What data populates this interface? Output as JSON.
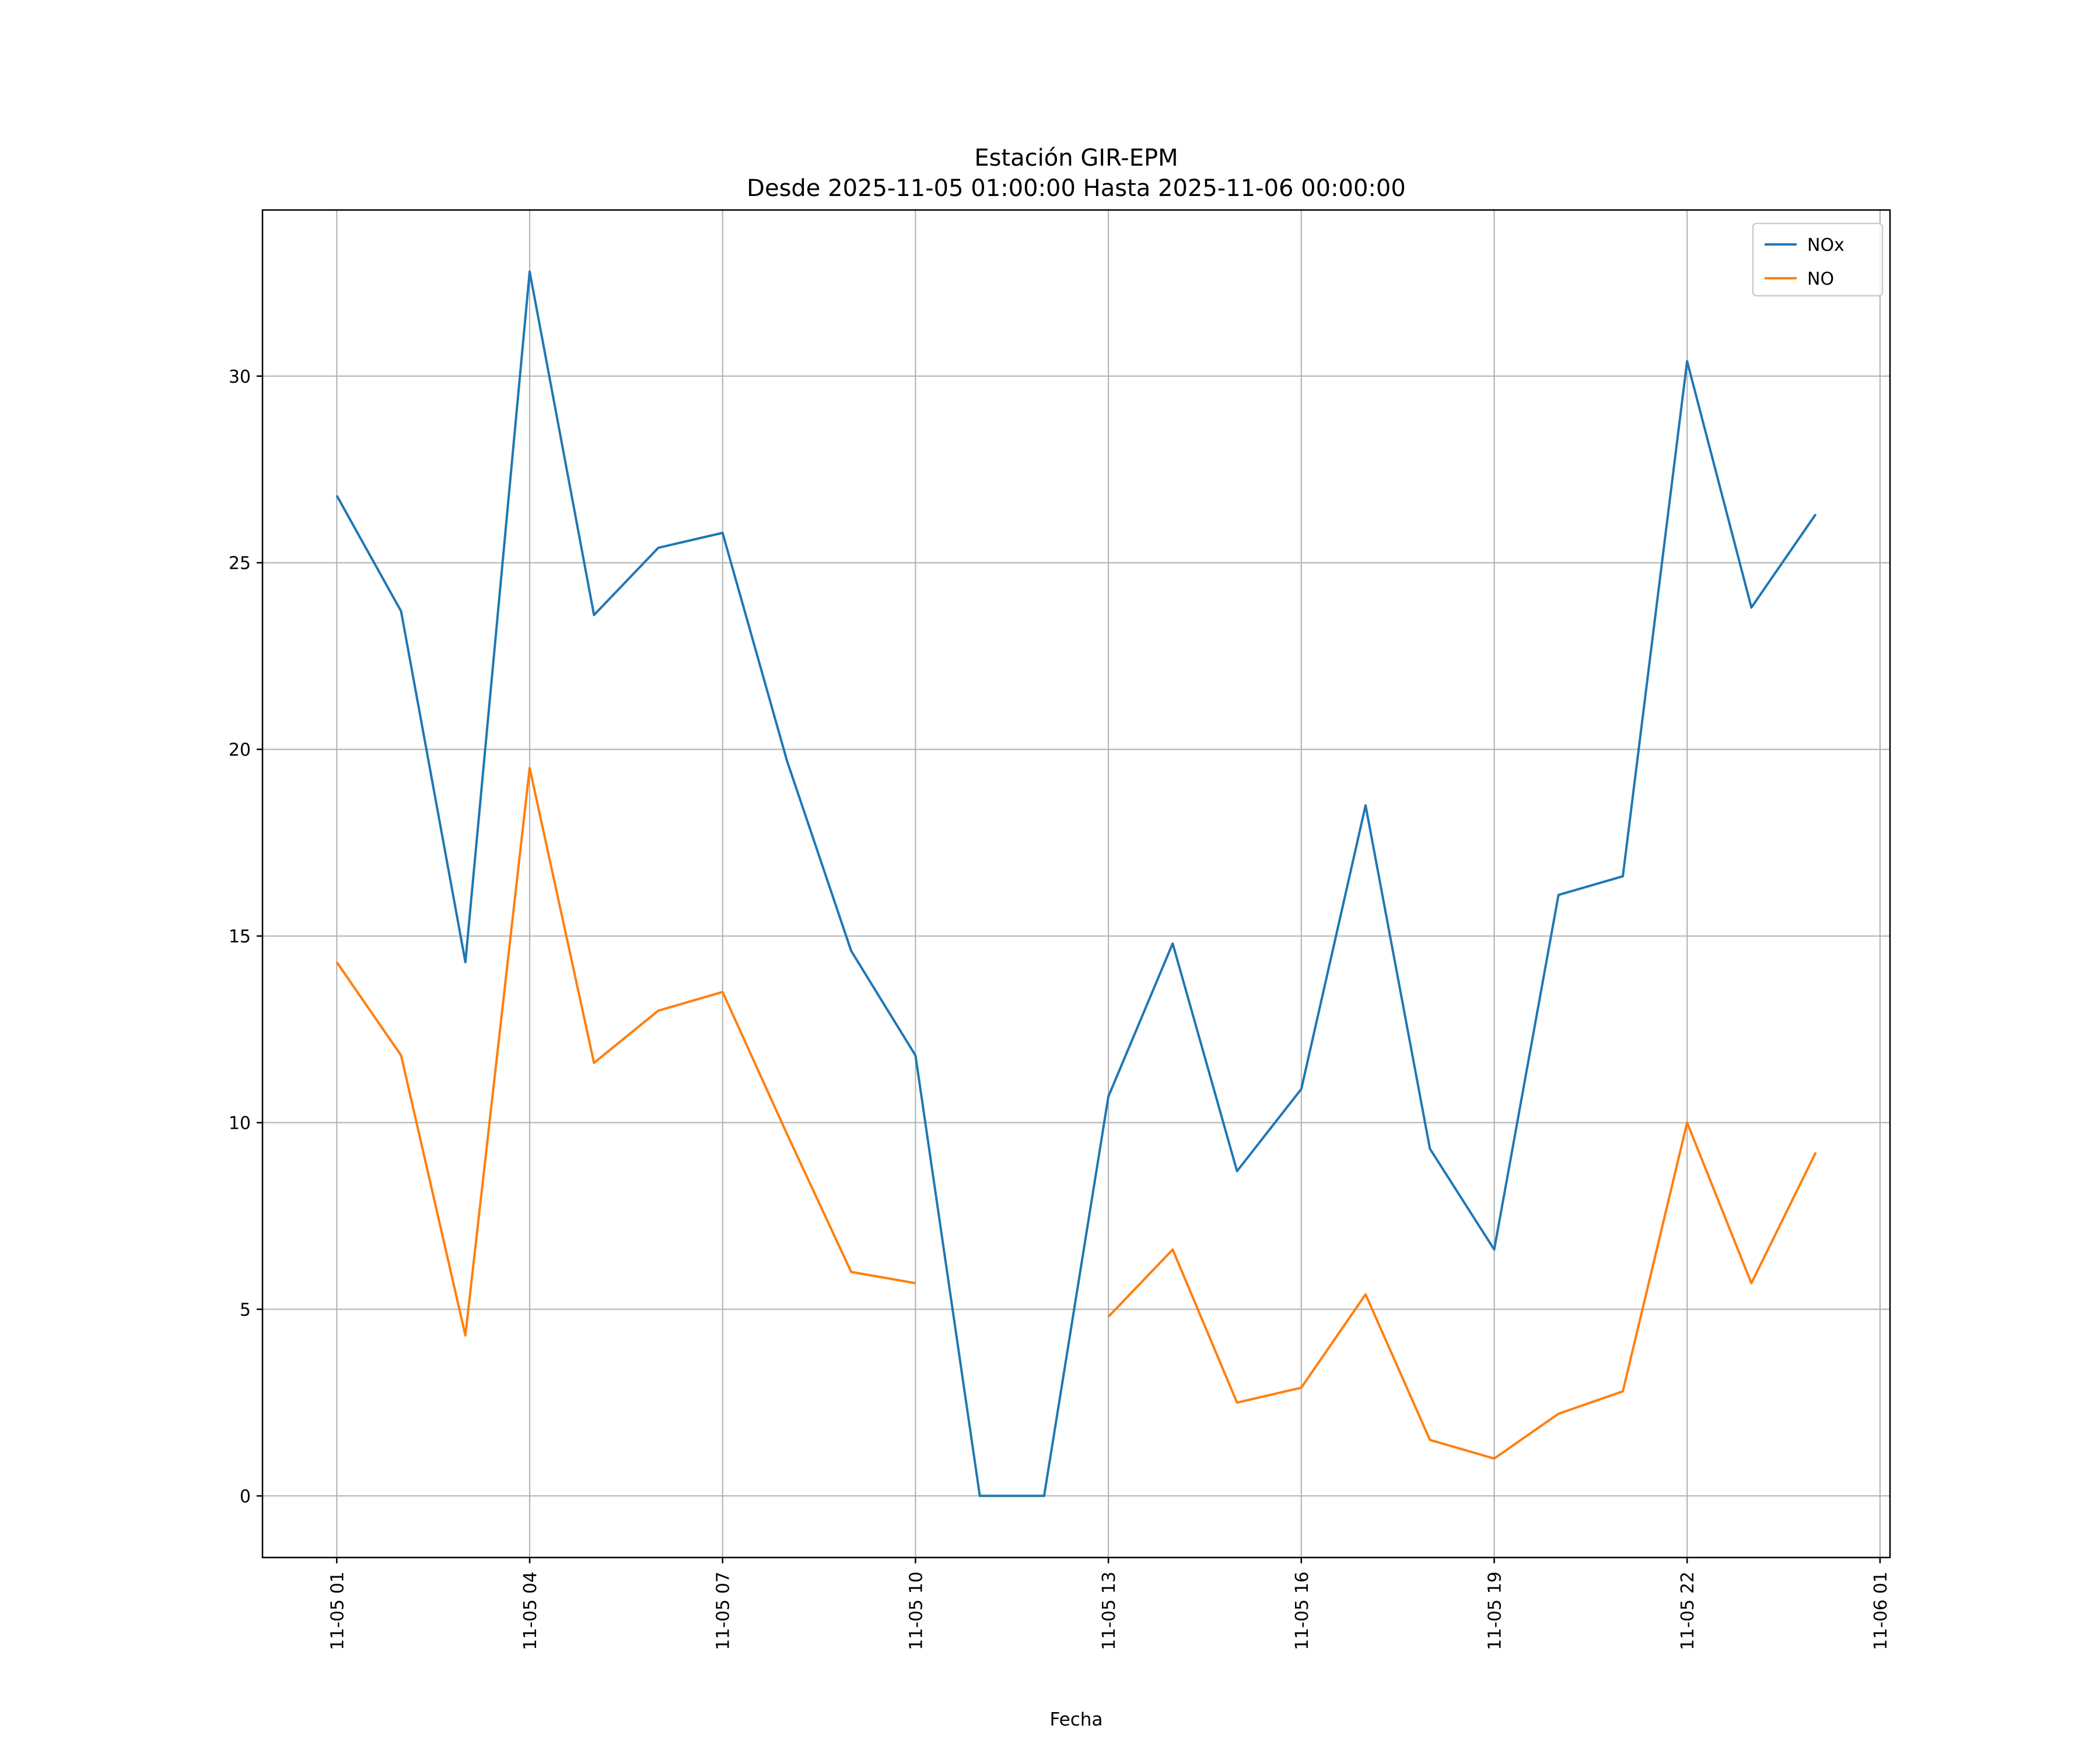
{
  "chart_data": {
    "type": "line",
    "title_line1": "Estación GIR-EPM",
    "title_line2": "Desde 2025-11-05 01:00:00 Hasta 2025-11-06 00:00:00",
    "xlabel": "Fecha",
    "ylabel": "",
    "grid": true,
    "legend_position": "upper right",
    "x_hours": [
      1,
      2,
      3,
      4,
      5,
      6,
      7,
      8,
      9,
      10,
      11,
      12,
      13,
      14,
      15,
      16,
      17,
      18,
      19,
      20,
      21,
      22,
      23,
      24
    ],
    "x_tick_positions": [
      1,
      4,
      7,
      10,
      13,
      16,
      19,
      22,
      25
    ],
    "x_tick_labels": [
      "11-05 01",
      "11-05 04",
      "11-05 07",
      "11-05 10",
      "11-05 13",
      "11-05 16",
      "11-05 19",
      "11-05 22",
      "11-06 01"
    ],
    "y_ticks": [
      0,
      5,
      10,
      15,
      20,
      25,
      30
    ],
    "xlim": [
      -0.155,
      25.155
    ],
    "ylim": [
      -1.65,
      34.45
    ],
    "series": [
      {
        "name": "NOx",
        "color": "#1f77b4",
        "values": [
          26.8,
          23.7,
          14.3,
          32.8,
          23.6,
          25.4,
          25.8,
          19.7,
          14.6,
          11.8,
          0.0,
          0.0,
          10.7,
          14.8,
          8.7,
          10.9,
          18.5,
          9.3,
          6.6,
          16.1,
          16.6,
          30.4,
          23.8,
          26.3
        ]
      },
      {
        "name": "NO",
        "color": "#ff7f0e",
        "values": [
          14.3,
          11.8,
          4.3,
          19.5,
          11.6,
          13.0,
          13.5,
          9.7,
          6.0,
          5.7,
          null,
          null,
          4.8,
          6.6,
          2.5,
          2.9,
          5.4,
          1.5,
          1.0,
          2.2,
          2.8,
          10.0,
          5.7,
          9.2
        ]
      }
    ]
  },
  "style": {
    "grid_color": "#b0b0b0",
    "spine_color": "#000000",
    "legend_edge_color": "#cccccc"
  }
}
